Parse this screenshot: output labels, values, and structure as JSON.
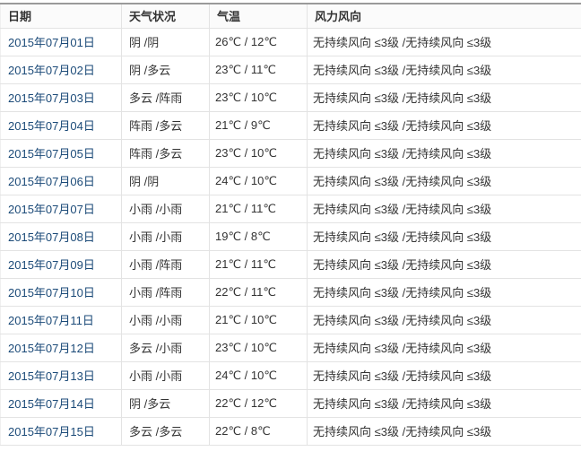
{
  "table": {
    "columns": [
      {
        "key": "date",
        "label": "日期"
      },
      {
        "key": "weather",
        "label": "天气状况"
      },
      {
        "key": "temp",
        "label": "气温"
      },
      {
        "key": "wind",
        "label": "风力风向"
      }
    ],
    "rows": [
      {
        "date": "2015年07月01日",
        "weather": "阴 /阴",
        "temp": "26℃ / 12℃",
        "wind": "无持续风向 ≤3级 /无持续风向 ≤3级"
      },
      {
        "date": "2015年07月02日",
        "weather": "阴 /多云",
        "temp": "23℃ / 11℃",
        "wind": "无持续风向 ≤3级 /无持续风向 ≤3级"
      },
      {
        "date": "2015年07月03日",
        "weather": "多云 /阵雨",
        "temp": "23℃ / 10℃",
        "wind": "无持续风向 ≤3级 /无持续风向 ≤3级"
      },
      {
        "date": "2015年07月04日",
        "weather": "阵雨 /多云",
        "temp": "21℃ / 9℃",
        "wind": "无持续风向 ≤3级 /无持续风向 ≤3级"
      },
      {
        "date": "2015年07月05日",
        "weather": "阵雨 /多云",
        "temp": "23℃ / 10℃",
        "wind": "无持续风向 ≤3级 /无持续风向 ≤3级"
      },
      {
        "date": "2015年07月06日",
        "weather": "阴 /阴",
        "temp": "24℃ / 10℃",
        "wind": "无持续风向 ≤3级 /无持续风向 ≤3级"
      },
      {
        "date": "2015年07月07日",
        "weather": "小雨 /小雨",
        "temp": "21℃ / 11℃",
        "wind": "无持续风向 ≤3级 /无持续风向 ≤3级"
      },
      {
        "date": "2015年07月08日",
        "weather": "小雨 /小雨",
        "temp": "19℃ / 8℃",
        "wind": "无持续风向 ≤3级 /无持续风向 ≤3级"
      },
      {
        "date": "2015年07月09日",
        "weather": "小雨 /阵雨",
        "temp": "21℃ / 11℃",
        "wind": "无持续风向 ≤3级 /无持续风向 ≤3级"
      },
      {
        "date": "2015年07月10日",
        "weather": "小雨 /阵雨",
        "temp": "22℃ / 11℃",
        "wind": "无持续风向 ≤3级 /无持续风向 ≤3级"
      },
      {
        "date": "2015年07月11日",
        "weather": "小雨 /小雨",
        "temp": "21℃ / 10℃",
        "wind": "无持续风向 ≤3级 /无持续风向 ≤3级"
      },
      {
        "date": "2015年07月12日",
        "weather": "多云 /小雨",
        "temp": "23℃ / 10℃",
        "wind": "无持续风向 ≤3级 /无持续风向 ≤3级"
      },
      {
        "date": "2015年07月13日",
        "weather": "小雨 /小雨",
        "temp": "24℃ / 10℃",
        "wind": "无持续风向 ≤3级 /无持续风向 ≤3级"
      },
      {
        "date": "2015年07月14日",
        "weather": "阴 /多云",
        "temp": "22℃ / 12℃",
        "wind": "无持续风向 ≤3级 /无持续风向 ≤3级"
      },
      {
        "date": "2015年07月15日",
        "weather": "多云 /多云",
        "temp": "22℃ / 8℃",
        "wind": "无持续风向 ≤3级 /无持续风向 ≤3级"
      }
    ]
  },
  "colors": {
    "date_link": "#1b4a78",
    "header_text": "#333333",
    "body_text": "#333333",
    "border_light": "#e3e3e3",
    "border_top": "#9a9a9a",
    "header_bg": "#fbfbfb"
  }
}
